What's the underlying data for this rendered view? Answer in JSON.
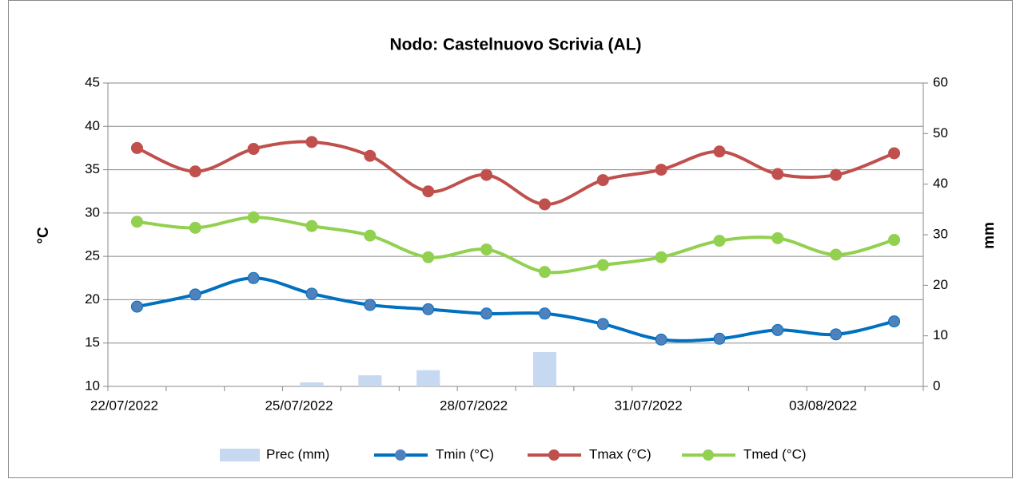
{
  "chart_data": {
    "type": "bar_line",
    "title": "Nodo: Castelnuovo Scrivia (AL)",
    "ylabel": "°C",
    "y2label": "mm",
    "categories": [
      "22/07/2022",
      null,
      null,
      "25/07/2022",
      null,
      null,
      "28/07/2022",
      null,
      null,
      "31/07/2022",
      null,
      null,
      "03/08/2022",
      null
    ],
    "series": [
      {
        "name": "Prec (mm)",
        "color": "#c6d9f1",
        "kind": "bar",
        "axis": "y2",
        "values": [
          0,
          0,
          0,
          0.8,
          2.2,
          3.2,
          0,
          6.8,
          0,
          0,
          0,
          0,
          0,
          0
        ]
      },
      {
        "name": "Tmin (°C)",
        "color": "#0070c0",
        "marker_color": "#4f81bd",
        "kind": "line",
        "values": [
          19.2,
          20.6,
          22.5,
          20.7,
          19.4,
          18.9,
          18.4,
          18.4,
          17.2,
          15.4,
          15.5,
          16.5,
          16.0,
          17.5
        ]
      },
      {
        "name": "Tmax (°C)",
        "color": "#c0504d",
        "marker_color": "#c0504d",
        "kind": "line",
        "values": [
          37.5,
          34.8,
          37.4,
          38.2,
          36.6,
          32.5,
          34.4,
          31.0,
          33.8,
          35.0,
          37.1,
          34.5,
          34.4,
          36.9
        ]
      },
      {
        "name": "Tmed (°C)",
        "color": "#92d050",
        "marker_color": "#92d050",
        "kind": "line",
        "values": [
          29.0,
          28.3,
          29.5,
          28.5,
          27.4,
          24.9,
          25.8,
          23.2,
          24.0,
          24.9,
          26.8,
          27.1,
          25.2,
          26.9
        ]
      }
    ],
    "ylim": [
      10,
      45
    ],
    "yticks": [
      10,
      15,
      20,
      25,
      30,
      35,
      40,
      45
    ],
    "y2lim": [
      0,
      60
    ],
    "y2ticks": [
      0,
      10,
      20,
      30,
      40,
      50,
      60
    ],
    "grid": true,
    "legend": "bottom"
  }
}
